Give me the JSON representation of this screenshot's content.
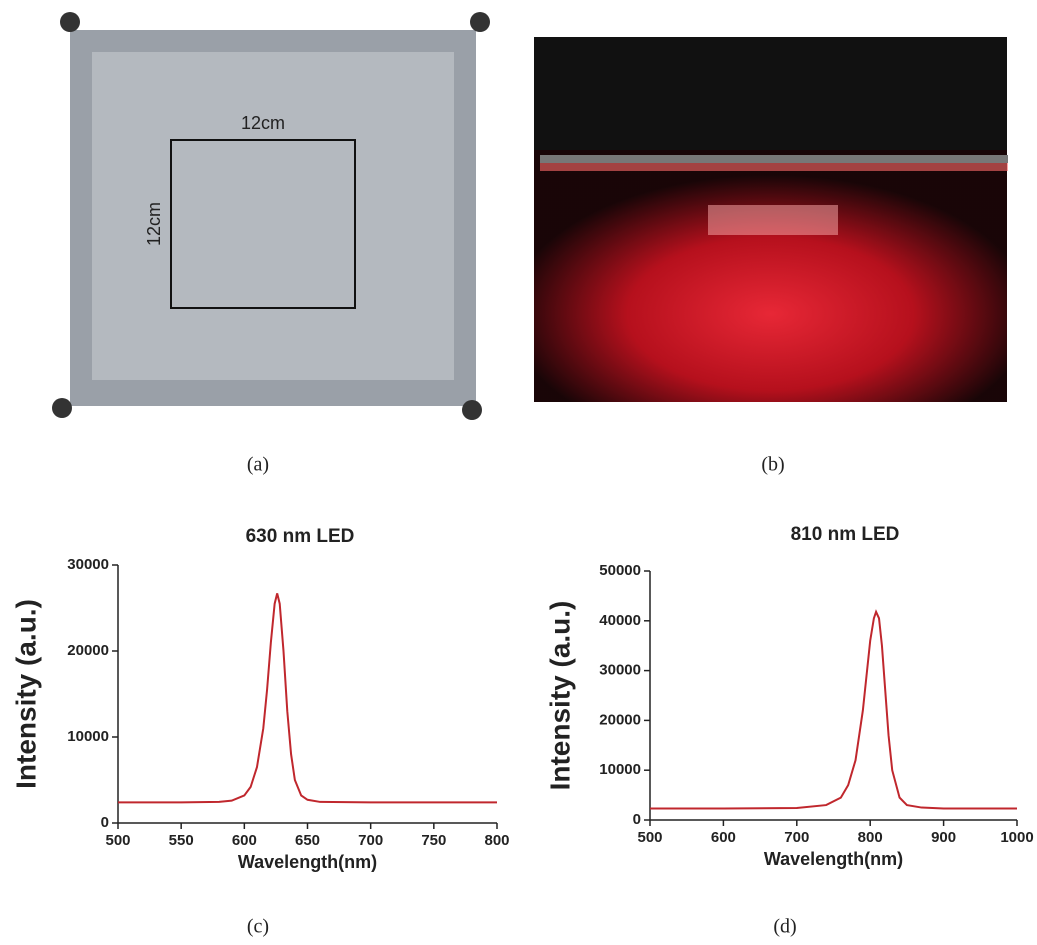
{
  "figure": {
    "panel_labels": [
      "(a)",
      "(b)",
      "(c)",
      "(d)"
    ],
    "photo_a": {
      "width_label": "12cm",
      "height_label": "12cm"
    }
  },
  "chart_data": [
    {
      "type": "line",
      "title": "630 nm LED",
      "x_label": "Wavelength(nm)",
      "y_label": "Intensity (a.u.)",
      "x": [
        500,
        550,
        580,
        590,
        600,
        605,
        610,
        615,
        618,
        621,
        624,
        626,
        628,
        631,
        634,
        637,
        640,
        645,
        650,
        660,
        700,
        800
      ],
      "values": [
        2400,
        2400,
        2450,
        2600,
        3200,
        4200,
        6500,
        11000,
        15500,
        21000,
        25500,
        26700,
        25500,
        20000,
        13000,
        8000,
        5000,
        3200,
        2700,
        2450,
        2400,
        2400
      ],
      "color": "#c0272d",
      "xlim": [
        500,
        800
      ],
      "xticks": [
        500,
        550,
        600,
        650,
        700,
        750,
        800
      ],
      "ylim": [
        0,
        30000
      ],
      "yticks": [
        0,
        10000,
        20000,
        30000
      ]
    },
    {
      "type": "line",
      "title": "810 nm LED",
      "x_label": "Wavelength(nm)",
      "y_label": "Intensity (a.u.)",
      "x": [
        500,
        600,
        700,
        740,
        760,
        770,
        780,
        790,
        795,
        800,
        805,
        808,
        812,
        816,
        820,
        825,
        830,
        840,
        850,
        870,
        900,
        1000
      ],
      "values": [
        2300,
        2300,
        2400,
        3000,
        4500,
        7000,
        12000,
        22000,
        29000,
        36000,
        40500,
        41800,
        40500,
        35000,
        27000,
        17000,
        10000,
        4500,
        3000,
        2500,
        2300,
        2300
      ],
      "color": "#c0272d",
      "xlim": [
        500,
        1000
      ],
      "xticks": [
        500,
        600,
        700,
        800,
        900,
        1000
      ],
      "ylim": [
        0,
        50000
      ],
      "yticks": [
        0,
        10000,
        20000,
        30000,
        40000,
        50000
      ]
    }
  ]
}
